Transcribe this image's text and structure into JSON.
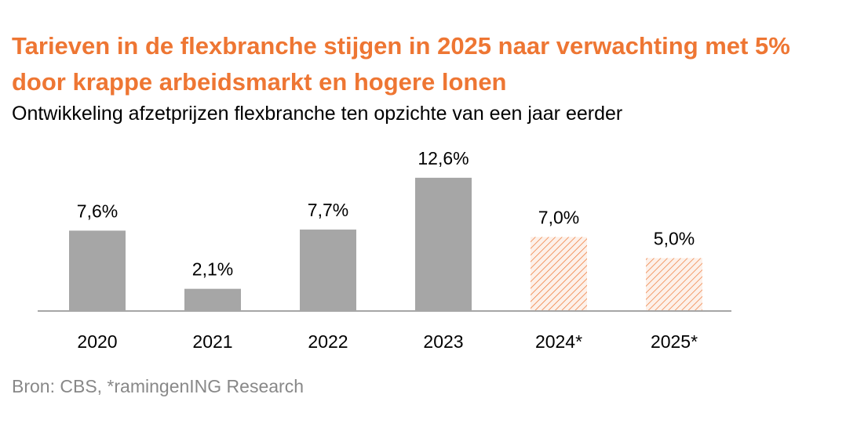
{
  "header": {
    "title": "Tarieven in de flexbranche stijgen in 2025 naar verwachting met 5% door krappe arbeidsmarkt en hogere lonen",
    "subtitle": "Ontwikkeling afzetprijzen flexbranche ten opzichte van een jaar eerder"
  },
  "chart_data": {
    "type": "bar",
    "categories": [
      "2020",
      "2021",
      "2022",
      "2023",
      "2024*",
      "2025*"
    ],
    "values": [
      7.6,
      2.1,
      7.7,
      12.6,
      7.0,
      5.0
    ],
    "value_labels": [
      "7,6%",
      "2,1%",
      "7,7%",
      "12,6%",
      "7,0%",
      "5,0%"
    ],
    "forecast": [
      false,
      false,
      false,
      false,
      true,
      true
    ],
    "ylim": [
      0,
      14
    ],
    "grid": false,
    "legend": "none",
    "colors": {
      "actual": "#a6a6a6",
      "forecast_hatch": "#ee7633",
      "forecast_fill": "#fdf1ea",
      "axis": "#a6a6a6",
      "text": "#000000"
    }
  },
  "footer": {
    "source": "Bron: CBS, *ramingenING Research"
  }
}
